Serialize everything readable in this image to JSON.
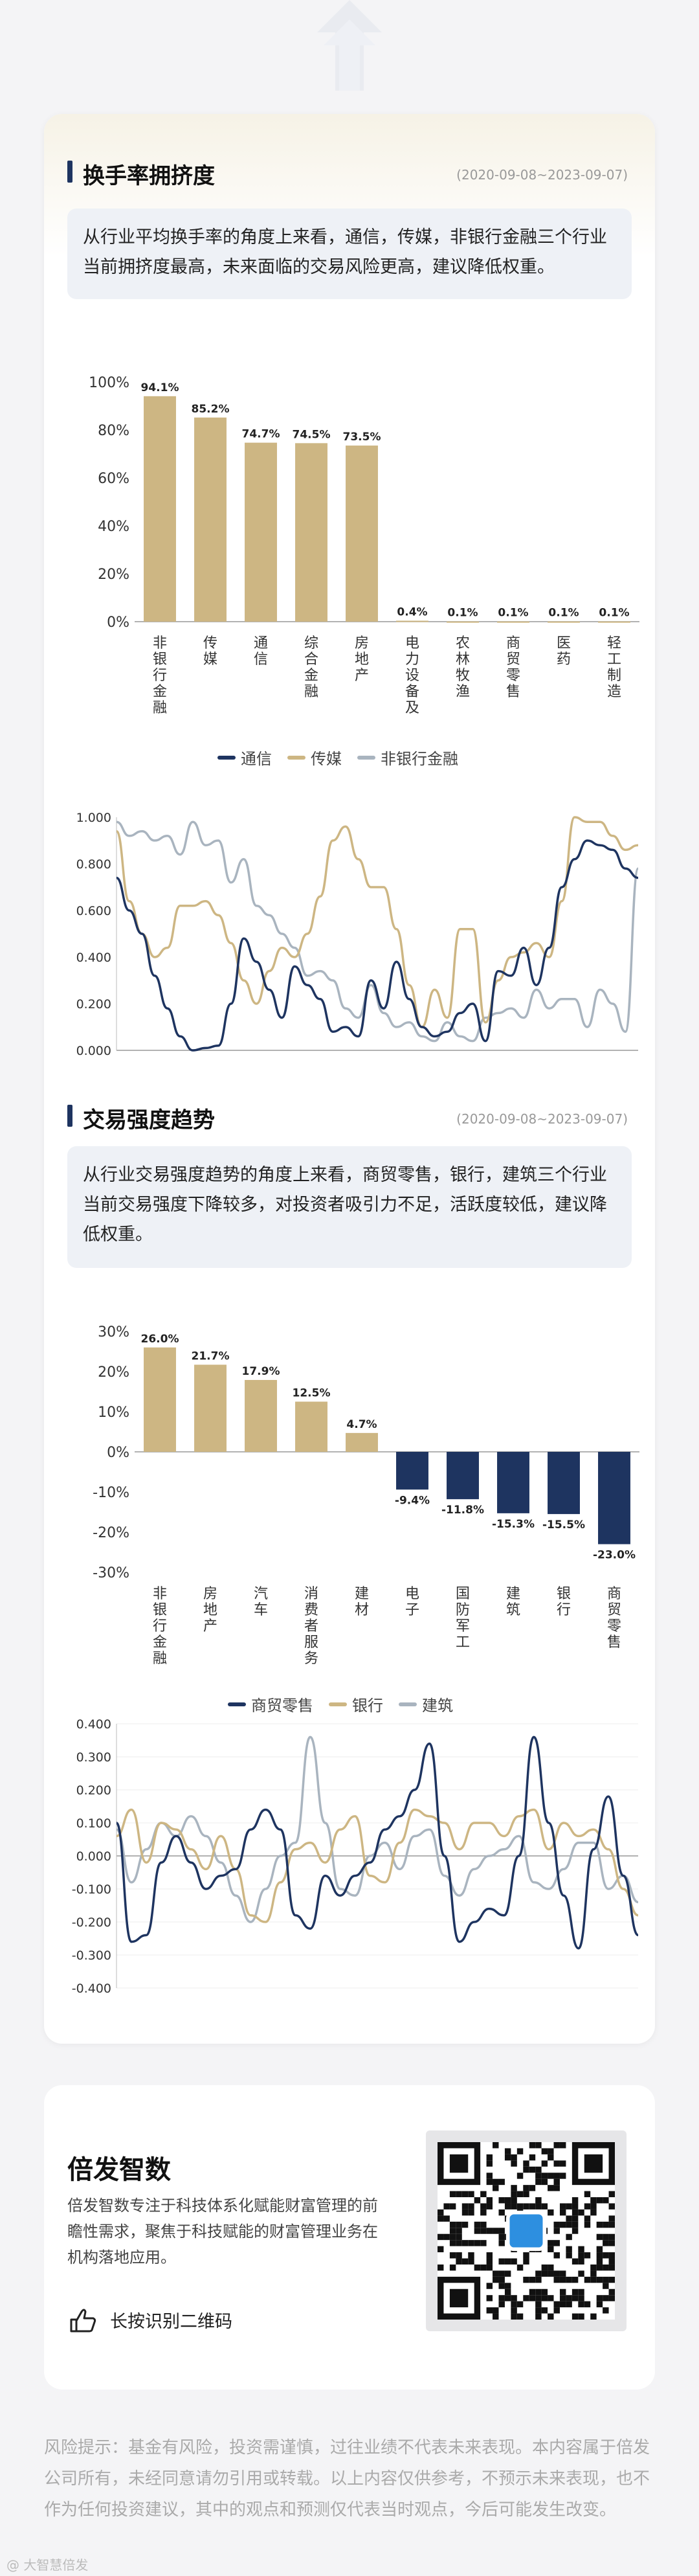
{
  "section1": {
    "title": "换手率拥挤度",
    "date": "(2020-09-08~2023-09-07)",
    "desc": "从行业平均换手率的角度上来看，通信，传媒，非银行金融三个行业当前拥挤度最高，未来面临的交易风险更高，建议降低权重。"
  },
  "section2": {
    "title": "交易强度趋势",
    "date": "(2020-09-08~2023-09-07)",
    "desc": "从行业交易强度趋势的角度上来看，商贸零售，银行，建筑三个行业当前交易强度下降较多，对投资者吸引力不足，活跃度较低，建议降低权重。"
  },
  "colors": {
    "gold": "#cdb683",
    "navy": "#1e3460",
    "gray": "#a9b4bf"
  },
  "chart_data": [
    {
      "type": "bar",
      "categories": [
        "非银行金融",
        "传媒",
        "通信",
        "综合金融",
        "房地产",
        "电力设备及",
        "农林牧渔",
        "商贸零售",
        "医药",
        "轻工制造"
      ],
      "values": [
        94.1,
        85.2,
        74.7,
        74.5,
        73.5,
        0.4,
        0.1,
        0.1,
        0.1,
        0.1
      ],
      "data_labels": [
        "94.1%",
        "85.2%",
        "74.7%",
        "74.5%",
        "73.5%",
        "0.4%",
        "0.1%",
        "0.1%",
        "0.1%",
        "0.1%"
      ],
      "yticks": [
        "0%",
        "20%",
        "40%",
        "60%",
        "80%",
        "100%"
      ],
      "ylim": [
        0,
        100
      ]
    },
    {
      "type": "line",
      "legend": [
        "通信",
        "传媒",
        "非银行金融"
      ],
      "yticks": [
        "0.000",
        "0.200",
        "0.400",
        "0.600",
        "0.800",
        "1.000"
      ],
      "ylim": [
        0,
        1
      ],
      "series": [
        {
          "name": "通信",
          "color": "navy",
          "values": [
            0.74,
            0.6,
            0.5,
            0.32,
            0.18,
            0.06,
            0.0,
            0.01,
            0.02,
            0.2,
            0.48,
            0.38,
            0.26,
            0.14,
            0.36,
            0.28,
            0.22,
            0.08,
            0.1,
            0.06,
            0.3,
            0.18,
            0.38,
            0.22,
            0.1,
            0.06,
            0.08,
            0.16,
            0.2,
            0.04,
            0.34,
            0.32,
            0.44,
            0.28,
            0.44,
            0.7,
            0.82,
            0.9,
            0.88,
            0.86,
            0.78,
            0.74
          ]
        },
        {
          "name": "传媒",
          "color": "gold",
          "values": [
            0.94,
            0.64,
            0.5,
            0.4,
            0.44,
            0.62,
            0.62,
            0.64,
            0.58,
            0.46,
            0.3,
            0.2,
            0.34,
            0.44,
            0.4,
            0.5,
            0.66,
            0.9,
            0.96,
            0.82,
            0.7,
            0.7,
            0.52,
            0.28,
            0.1,
            0.26,
            0.14,
            0.52,
            0.52,
            0.12,
            0.3,
            0.4,
            0.42,
            0.46,
            0.4,
            0.64,
            1.0,
            0.98,
            0.98,
            0.92,
            0.86,
            0.88
          ]
        },
        {
          "name": "非银行金融",
          "color": "gray",
          "values": [
            0.98,
            0.92,
            0.94,
            0.9,
            0.92,
            0.84,
            0.98,
            0.88,
            0.9,
            0.72,
            0.82,
            0.62,
            0.58,
            0.5,
            0.44,
            0.32,
            0.34,
            0.3,
            0.18,
            0.14,
            0.28,
            0.16,
            0.1,
            0.12,
            0.06,
            0.04,
            0.12,
            0.06,
            0.04,
            0.14,
            0.16,
            0.18,
            0.14,
            0.26,
            0.18,
            0.22,
            0.22,
            0.1,
            0.26,
            0.2,
            0.08,
            0.78
          ]
        }
      ]
    },
    {
      "type": "bar",
      "categories": [
        "非银行金融",
        "房地产",
        "汽车",
        "消费者服务",
        "建材",
        "电子",
        "国防军工",
        "建筑",
        "银行",
        "商贸零售"
      ],
      "values": [
        26.0,
        21.7,
        17.9,
        12.5,
        4.7,
        -9.4,
        -11.8,
        -15.3,
        -15.5,
        -23.0
      ],
      "data_labels": [
        "26.0%",
        "21.7%",
        "17.9%",
        "12.5%",
        "4.7%",
        "-9.4%",
        "-11.8%",
        "-15.3%",
        "-15.5%",
        "-23.0%"
      ],
      "yticks": [
        "-30%",
        "-20%",
        "-10%",
        "0%",
        "10%",
        "20%",
        "30%"
      ],
      "ylim": [
        -30,
        30
      ]
    },
    {
      "type": "line",
      "legend": [
        "商贸零售",
        "银行",
        "建筑"
      ],
      "yticks": [
        "-0.400",
        "-0.300",
        "-0.200",
        "-0.100",
        "0.000",
        "0.100",
        "0.200",
        "0.300",
        "0.400"
      ],
      "ylim": [
        -0.4,
        0.4
      ],
      "series": [
        {
          "name": "商贸零售",
          "color": "navy",
          "values": [
            0.1,
            -0.26,
            -0.24,
            -0.02,
            0.06,
            -0.02,
            -0.1,
            -0.06,
            -0.04,
            0.08,
            0.14,
            0.08,
            -0.18,
            -0.22,
            -0.06,
            -0.12,
            -0.06,
            -0.02,
            0.08,
            0.12,
            0.2,
            0.34,
            0.0,
            -0.26,
            -0.2,
            -0.16,
            -0.18,
            0.0,
            0.36,
            0.1,
            -0.12,
            -0.28,
            0.02,
            0.18,
            -0.06,
            -0.24
          ]
        },
        {
          "name": "银行",
          "color": "gold",
          "values": [
            0.06,
            0.14,
            -0.02,
            0.1,
            0.08,
            0.02,
            -0.04,
            0.06,
            -0.04,
            -0.18,
            -0.2,
            -0.08,
            0.02,
            0.04,
            -0.02,
            0.08,
            0.12,
            -0.06,
            -0.08,
            0.04,
            0.14,
            0.12,
            0.1,
            0.02,
            0.1,
            0.1,
            0.06,
            0.12,
            0.14,
            0.02,
            0.1,
            0.06,
            0.08,
            0.02,
            -0.1,
            -0.18
          ]
        },
        {
          "name": "建筑",
          "color": "gray",
          "values": [
            0.08,
            -0.08,
            0.02,
            0.1,
            0.06,
            0.12,
            0.06,
            -0.02,
            -0.12,
            -0.2,
            -0.1,
            0.0,
            0.04,
            0.36,
            0.1,
            -0.1,
            -0.12,
            0.0,
            0.04,
            -0.04,
            0.06,
            0.08,
            -0.06,
            -0.12,
            -0.04,
            0.0,
            0.02,
            0.06,
            -0.08,
            -0.1,
            -0.04,
            0.04,
            0.04,
            -0.1,
            -0.06,
            -0.14
          ]
        }
      ]
    }
  ],
  "footer": {
    "brand": "倍发智数",
    "desc": "倍发智数专注于科技体系化赋能财富管理的前瞻性需求，聚焦于科技赋能的财富管理业务在机构落地应用。",
    "scan": "长按识别二维码",
    "disclaimer": "风险提示：基金有风险，投资需谨慎，过往业绩不代表未来表现。本内容属于倍发公司所有，未经同意请勿引用或转载。以上内容仅供参考，不预示未来表现，也不作为任何投资建议，其中的观点和预测仅代表当时观点，今后可能发生改变。",
    "watermark": "@ 大智慧倍发"
  }
}
